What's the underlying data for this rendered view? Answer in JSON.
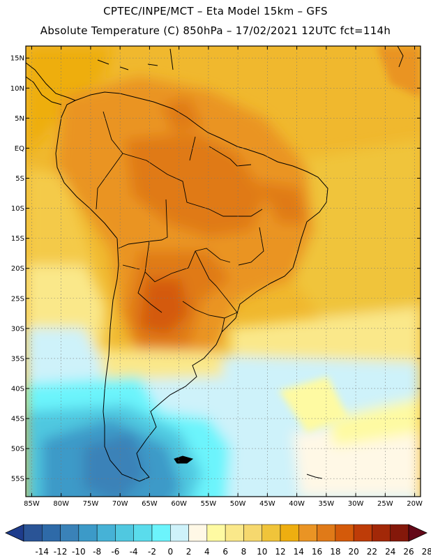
{
  "header": {
    "line1": "CPTEC/INPE/MCT –  Eta Model 15km – GFS",
    "line2": "Absolute Temperature (C) 850hPa – 17/02/2021 12UTC fct=114h"
  },
  "map": {
    "lon_range": [
      -86,
      -19
    ],
    "lat_range": [
      -58,
      17
    ],
    "lat_ticks": [
      {
        "lat": 15,
        "label": "15N"
      },
      {
        "lat": 10,
        "label": "10N"
      },
      {
        "lat": 5,
        "label": "5N"
      },
      {
        "lat": 0,
        "label": "EQ"
      },
      {
        "lat": -5,
        "label": "5S"
      },
      {
        "lat": -10,
        "label": "10S"
      },
      {
        "lat": -15,
        "label": "15S"
      },
      {
        "lat": -20,
        "label": "20S"
      },
      {
        "lat": -25,
        "label": "25S"
      },
      {
        "lat": -30,
        "label": "30S"
      },
      {
        "lat": -35,
        "label": "35S"
      },
      {
        "lat": -40,
        "label": "40S"
      },
      {
        "lat": -45,
        "label": "45S"
      },
      {
        "lat": -50,
        "label": "50S"
      },
      {
        "lat": -55,
        "label": "55S"
      }
    ],
    "lon_ticks": [
      {
        "lon": -85,
        "label": "85W"
      },
      {
        "lon": -80,
        "label": "80W"
      },
      {
        "lon": -75,
        "label": "75W"
      },
      {
        "lon": -70,
        "label": "70W"
      },
      {
        "lon": -65,
        "label": "65W"
      },
      {
        "lon": -60,
        "label": "60W"
      },
      {
        "lon": -55,
        "label": "55W"
      },
      {
        "lon": -50,
        "label": "50W"
      },
      {
        "lon": -45,
        "label": "45W"
      },
      {
        "lon": -40,
        "label": "40W"
      },
      {
        "lon": -35,
        "label": "35W"
      },
      {
        "lon": -30,
        "label": "30W"
      },
      {
        "lon": -25,
        "label": "25W"
      },
      {
        "lon": -20,
        "label": "20W"
      }
    ]
  },
  "colorbar": {
    "labels": [
      "-14",
      "-12",
      "-10",
      "-8",
      "-6",
      "-4",
      "-2",
      "0",
      "2",
      "4",
      "6",
      "8",
      "10",
      "12",
      "14",
      "16",
      "18",
      "20",
      "22",
      "24",
      "26",
      "28"
    ],
    "colors": [
      "#1e3c8c",
      "#2a5496",
      "#2e6aa8",
      "#3a82b8",
      "#3c9ac8",
      "#46b2d6",
      "#50c8e0",
      "#5adcec",
      "#6cf4fc",
      "#cef2fa",
      "#fff8e6",
      "#fefaa2",
      "#fae88a",
      "#f6d86e",
      "#f0c43a",
      "#eeae10",
      "#ea9424",
      "#e07a18",
      "#d45a0a",
      "#be3c08",
      "#a22808",
      "#84180a",
      "#640818"
    ]
  }
}
